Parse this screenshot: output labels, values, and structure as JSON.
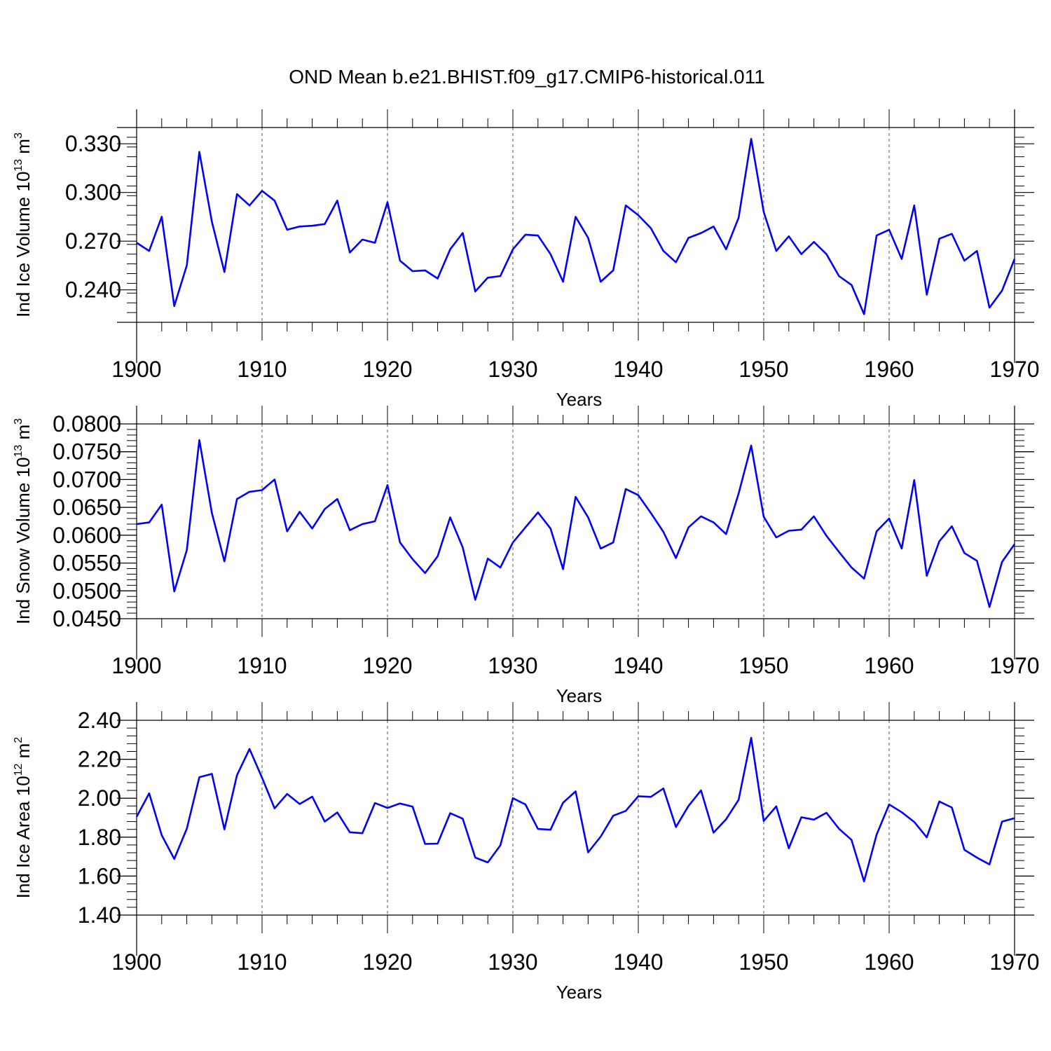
{
  "title": "OND Mean b.e21.BHIST.f09_g17.CMIP6-historical.011",
  "colors": {
    "line": "#0000ff",
    "axis": "#000000",
    "grid": "#555555"
  },
  "chart_data": [
    {
      "type": "line",
      "ylabel": "Ind Ice Volume 10",
      "ylabel_exp": "13",
      "ylabel_unit": " m",
      "ylabel_unit_exp": "3",
      "xlabel": "Years",
      "xlim": [
        1900,
        1970
      ],
      "ylim": [
        0.22,
        0.34
      ],
      "yticks": [
        0.24,
        0.27,
        0.3,
        0.33
      ],
      "ytick_labels": [
        "0.240",
        "0.270",
        "0.300",
        "0.330"
      ],
      "xticks": [
        1900,
        1910,
        1920,
        1930,
        1940,
        1950,
        1960,
        1970
      ],
      "xtick_labels": [
        "1900",
        "1910",
        "1920",
        "1930",
        "1940",
        "1950",
        "1960",
        "1970"
      ],
      "grid_x": true,
      "series": [
        {
          "x": [
            1900,
            1901,
            1902,
            1903,
            1904,
            1905,
            1906,
            1907,
            1908,
            1909,
            1910,
            1911,
            1912,
            1913,
            1914,
            1915,
            1916,
            1917,
            1918,
            1919,
            1920,
            1921,
            1922,
            1923,
            1924,
            1925,
            1926,
            1927,
            1928,
            1929,
            1930,
            1931,
            1932,
            1933,
            1934,
            1935,
            1936,
            1937,
            1938,
            1939,
            1940,
            1941,
            1942,
            1943,
            1944,
            1945,
            1946,
            1947,
            1948,
            1949,
            1950,
            1951,
            1952,
            1953,
            1954,
            1955,
            1956,
            1957,
            1958,
            1959,
            1960,
            1961,
            1962,
            1963,
            1964,
            1965,
            1966,
            1967,
            1968,
            1969,
            1970
          ],
          "y": [
            0.269,
            0.264,
            0.285,
            0.23,
            0.255,
            0.325,
            0.282,
            0.251,
            0.299,
            0.292,
            0.301,
            0.295,
            0.277,
            0.279,
            0.2795,
            0.2805,
            0.295,
            0.263,
            0.271,
            0.269,
            0.294,
            0.258,
            0.2515,
            0.252,
            0.247,
            0.265,
            0.275,
            0.239,
            0.2475,
            0.2485,
            0.265,
            0.274,
            0.2735,
            0.262,
            0.245,
            0.285,
            0.272,
            0.245,
            0.252,
            0.292,
            0.286,
            0.278,
            0.264,
            0.257,
            0.272,
            0.275,
            0.279,
            0.265,
            0.2845,
            0.333,
            0.288,
            0.264,
            0.273,
            0.262,
            0.2695,
            0.262,
            0.2485,
            0.243,
            0.225,
            0.2735,
            0.277,
            0.259,
            0.292,
            0.237,
            0.2715,
            0.2745,
            0.258,
            0.264,
            0.229,
            0.2395,
            0.259
          ]
        }
      ]
    },
    {
      "type": "line",
      "ylabel": "Ind Snow Volume 10",
      "ylabel_exp": "13",
      "ylabel_unit": " m",
      "ylabel_unit_exp": "3",
      "xlabel": "Years",
      "xlim": [
        1900,
        1970
      ],
      "ylim": [
        0.045,
        0.08
      ],
      "yticks": [
        0.045,
        0.05,
        0.055,
        0.06,
        0.065,
        0.07,
        0.075,
        0.08
      ],
      "ytick_labels": [
        "0.0450",
        "0.0500",
        "0.0550",
        "0.0600",
        "0.0650",
        "0.0700",
        "0.0750",
        "0.0800"
      ],
      "xticks": [
        1900,
        1910,
        1920,
        1930,
        1940,
        1950,
        1960,
        1970
      ],
      "xtick_labels": [
        "1900",
        "1910",
        "1920",
        "1930",
        "1940",
        "1950",
        "1960",
        "1970"
      ],
      "grid_x": true,
      "series": [
        {
          "x": [
            1900,
            1901,
            1902,
            1903,
            1904,
            1905,
            1906,
            1907,
            1908,
            1909,
            1910,
            1911,
            1912,
            1913,
            1914,
            1915,
            1916,
            1917,
            1918,
            1919,
            1920,
            1921,
            1922,
            1923,
            1924,
            1925,
            1926,
            1927,
            1928,
            1929,
            1930,
            1931,
            1932,
            1933,
            1934,
            1935,
            1936,
            1937,
            1938,
            1939,
            1940,
            1941,
            1942,
            1943,
            1944,
            1945,
            1946,
            1947,
            1948,
            1949,
            1950,
            1951,
            1952,
            1953,
            1954,
            1955,
            1956,
            1957,
            1958,
            1959,
            1960,
            1961,
            1962,
            1963,
            1964,
            1965,
            1966,
            1967,
            1968,
            1969,
            1970
          ],
          "y": [
            0.062,
            0.0623,
            0.0655,
            0.0499,
            0.0573,
            0.0771,
            0.064,
            0.0553,
            0.0665,
            0.0678,
            0.0681,
            0.07,
            0.0607,
            0.0642,
            0.0612,
            0.0647,
            0.0665,
            0.0609,
            0.062,
            0.0625,
            0.069,
            0.0587,
            0.0557,
            0.0532,
            0.0562,
            0.0632,
            0.0578,
            0.0484,
            0.0558,
            0.0542,
            0.0587,
            0.0614,
            0.0641,
            0.0612,
            0.0539,
            0.0669,
            0.0632,
            0.0576,
            0.0587,
            0.0683,
            0.0672,
            0.064,
            0.0606,
            0.0559,
            0.0614,
            0.0634,
            0.0623,
            0.0602,
            0.0675,
            0.0761,
            0.0633,
            0.0596,
            0.0608,
            0.061,
            0.0634,
            0.0599,
            0.057,
            0.0542,
            0.0522,
            0.0607,
            0.063,
            0.0576,
            0.0699,
            0.0527,
            0.0589,
            0.0616,
            0.0568,
            0.0554,
            0.0471,
            0.0552,
            0.0584
          ]
        }
      ]
    },
    {
      "type": "line",
      "ylabel": "Ind Ice Area 10",
      "ylabel_exp": "12",
      "ylabel_unit": " m",
      "ylabel_unit_exp": "2",
      "xlabel": "Years",
      "xlim": [
        1900,
        1970
      ],
      "ylim": [
        1.4,
        2.4
      ],
      "yticks": [
        1.4,
        1.6,
        1.8,
        2.0,
        2.2,
        2.4
      ],
      "ytick_labels": [
        "1.40",
        "1.60",
        "1.80",
        "2.00",
        "2.20",
        "2.40"
      ],
      "xticks": [
        1900,
        1910,
        1920,
        1930,
        1940,
        1950,
        1960,
        1970
      ],
      "xtick_labels": [
        "1900",
        "1910",
        "1920",
        "1930",
        "1940",
        "1950",
        "1960",
        "1970"
      ],
      "grid_x": true,
      "series": [
        {
          "x": [
            1900,
            1901,
            1902,
            1903,
            1904,
            1905,
            1906,
            1907,
            1908,
            1909,
            1910,
            1911,
            1912,
            1913,
            1914,
            1915,
            1916,
            1917,
            1918,
            1919,
            1920,
            1921,
            1922,
            1923,
            1924,
            1925,
            1926,
            1927,
            1928,
            1929,
            1930,
            1931,
            1932,
            1933,
            1934,
            1935,
            1936,
            1937,
            1938,
            1939,
            1940,
            1941,
            1942,
            1943,
            1944,
            1945,
            1946,
            1947,
            1948,
            1949,
            1950,
            1951,
            1952,
            1953,
            1954,
            1955,
            1956,
            1957,
            1958,
            1959,
            1960,
            1961,
            1962,
            1963,
            1964,
            1965,
            1966,
            1967,
            1968,
            1969,
            1970
          ],
          "y": [
            1.905,
            2.025,
            1.81,
            1.688,
            1.843,
            2.108,
            2.125,
            1.84,
            2.118,
            2.253,
            2.105,
            1.948,
            2.022,
            1.97,
            2.008,
            1.88,
            1.927,
            1.825,
            1.82,
            1.975,
            1.95,
            1.973,
            1.957,
            1.765,
            1.767,
            1.923,
            1.895,
            1.695,
            1.67,
            1.758,
            2.0,
            1.968,
            1.842,
            1.838,
            1.977,
            2.035,
            1.722,
            1.803,
            1.91,
            1.935,
            2.01,
            2.007,
            2.05,
            1.852,
            1.96,
            2.04,
            1.823,
            1.892,
            1.992,
            2.31,
            1.883,
            1.958,
            1.743,
            1.902,
            1.89,
            1.925,
            1.843,
            1.786,
            1.573,
            1.813,
            1.968,
            1.928,
            1.878,
            1.799,
            1.983,
            1.952,
            1.735,
            1.695,
            1.66,
            1.88,
            1.897
          ]
        }
      ]
    }
  ]
}
